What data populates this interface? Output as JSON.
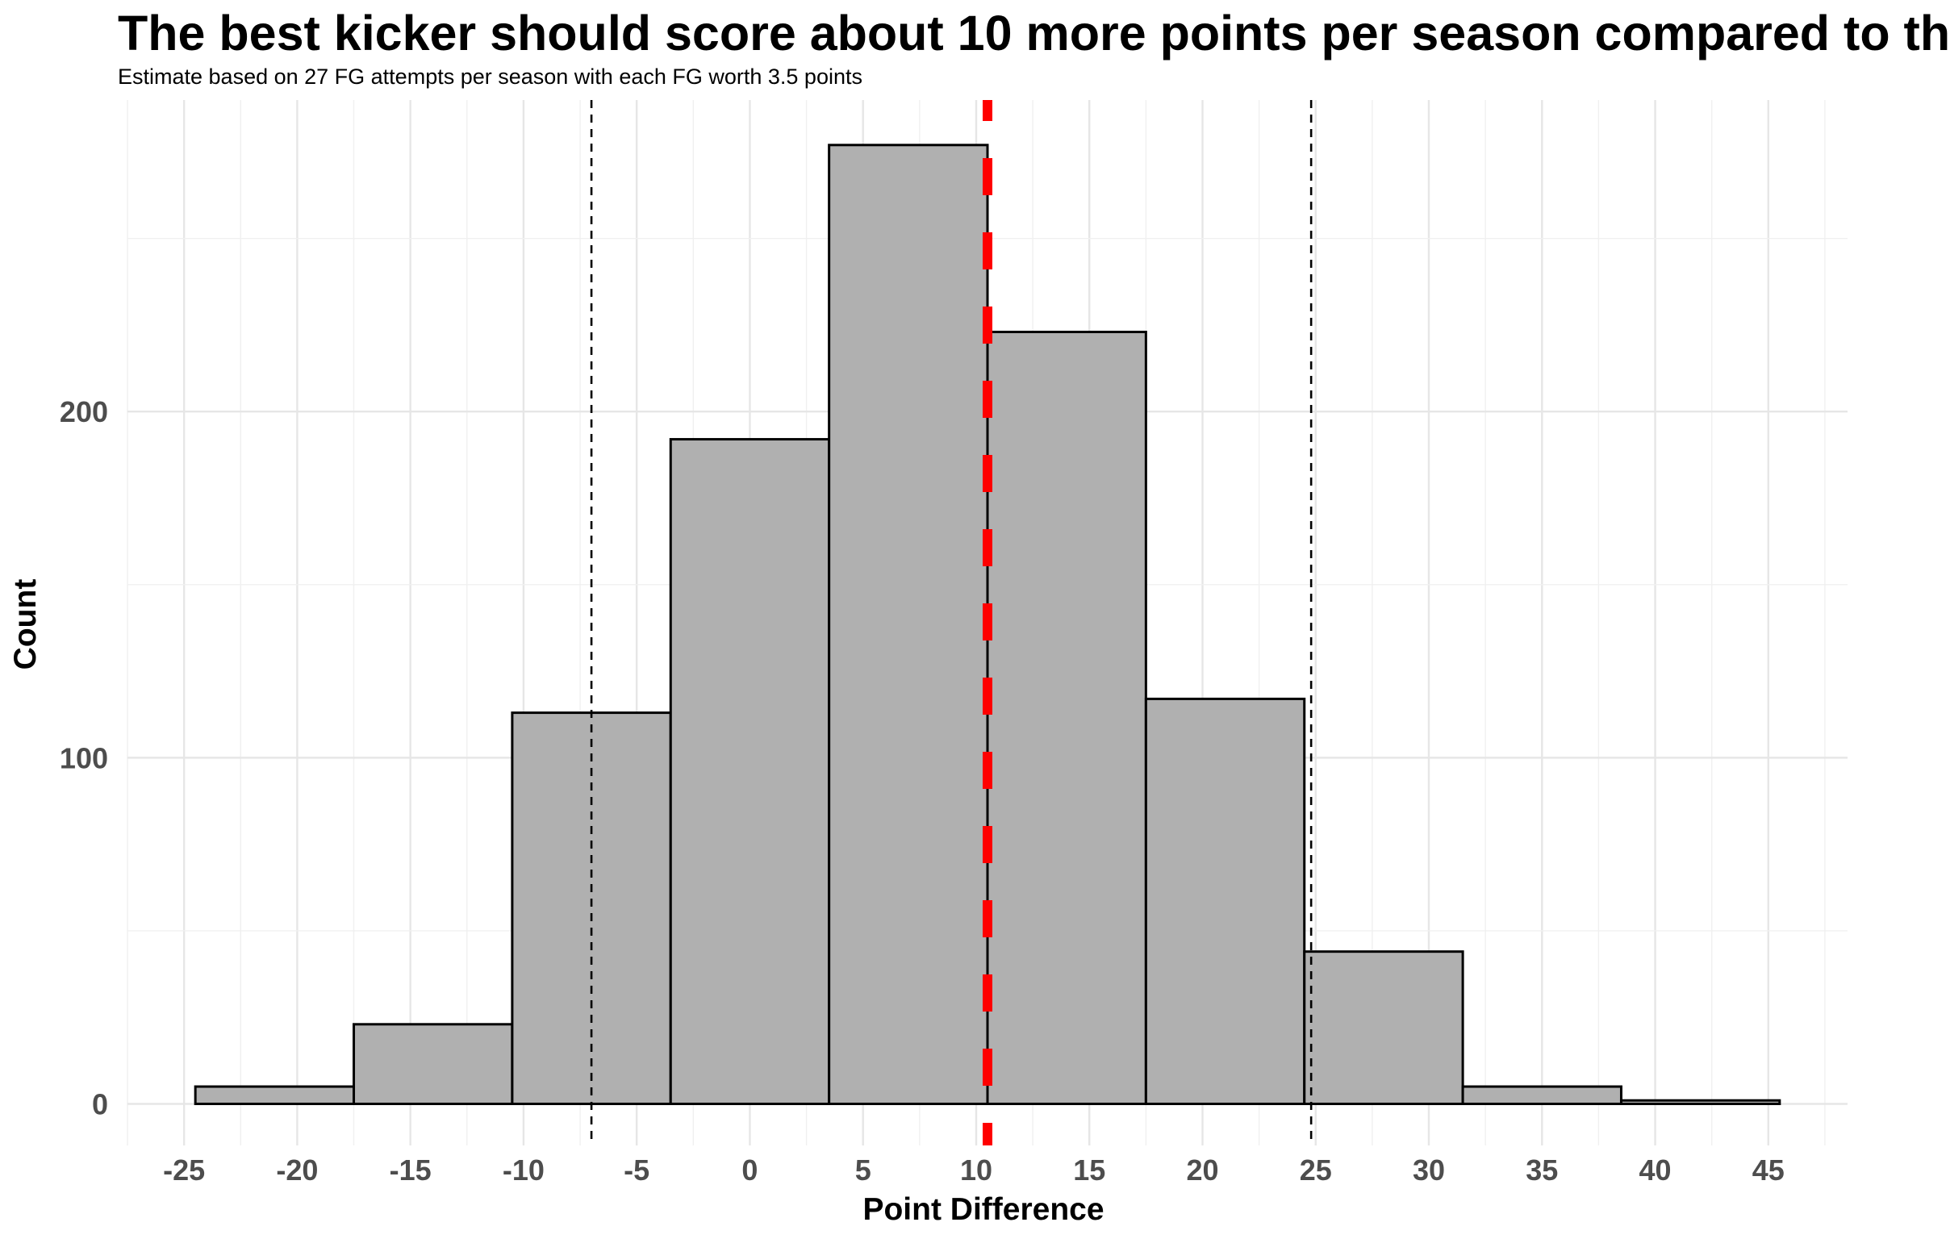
{
  "title": "The best kicker should score about 10 more points per season compared to th",
  "subtitle": "Estimate based on 27 FG attempts per season with each FG worth 3.5 points",
  "chart_data": {
    "type": "histogram",
    "xlabel": "Point Difference",
    "ylabel": "Count",
    "xlim": [
      -27.5,
      48.5
    ],
    "ylim": [
      -12,
      290
    ],
    "x_ticks": [
      -25,
      -20,
      -15,
      -10,
      -5,
      0,
      5,
      10,
      15,
      20,
      25,
      30,
      35,
      40,
      45
    ],
    "y_ticks": [
      0,
      100,
      200
    ],
    "x_tick_labels": [
      "-25",
      "-20",
      "-15",
      "-10",
      "-5",
      "0",
      "5",
      "10",
      "15",
      "20",
      "25",
      "30",
      "35",
      "40",
      "45"
    ],
    "y_tick_labels": [
      "0",
      "100",
      "200"
    ],
    "bins": [
      {
        "x_start": -24.5,
        "x_end": -17.5,
        "count": 5
      },
      {
        "x_start": -17.5,
        "x_end": -10.5,
        "count": 23
      },
      {
        "x_start": -10.5,
        "x_end": -3.5,
        "count": 113
      },
      {
        "x_start": -3.5,
        "x_end": 3.5,
        "count": 192
      },
      {
        "x_start": 3.5,
        "x_end": 10.5,
        "count": 277
      },
      {
        "x_start": 10.5,
        "x_end": 17.5,
        "count": 223
      },
      {
        "x_start": 17.5,
        "x_end": 24.5,
        "count": 117
      },
      {
        "x_start": 24.5,
        "x_end": 31.5,
        "count": 44
      },
      {
        "x_start": 31.5,
        "x_end": 38.5,
        "count": 5
      },
      {
        "x_start": 38.5,
        "x_end": 45.5,
        "count": 1
      }
    ],
    "reference_lines": [
      {
        "name": "lower-bound",
        "x": -7,
        "color": "#000000",
        "style": "dashed"
      },
      {
        "name": "mean",
        "x": 10.5,
        "color": "#ff0000",
        "style": "dashed-thick"
      },
      {
        "name": "upper-bound",
        "x": 24.8,
        "color": "#000000",
        "style": "dashed"
      }
    ],
    "bar_fill": "#b0b0b0",
    "bar_stroke": "#000000",
    "grid": true,
    "legend": "none"
  }
}
